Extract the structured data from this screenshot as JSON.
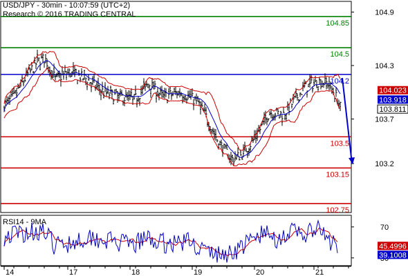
{
  "header": {
    "title": "USD/JPY - 30min - 10:07:59 (UTC+2)",
    "subtitle": "Research © 2016 TRADING CENTRAL"
  },
  "chart_data": [
    {
      "type": "candlestick",
      "instrument": "USD/JPY",
      "timeframe": "30min",
      "x_tick_labels": [
        "14",
        "17",
        "18",
        "19",
        "20",
        "21"
      ],
      "y_ticks": [
        104.9,
        104.3,
        103.7,
        103.2
      ],
      "y_tick_labels": [
        "104.9",
        "104.3",
        "103.7",
        "103.2"
      ],
      "ylim": [
        102.65,
        105.02
      ],
      "grid": false,
      "price_summary": {
        "range_high": 104.45,
        "range_low": 103.15,
        "last_close": 103.811
      },
      "horizontal_lines": [
        {
          "label": "104.85",
          "value": 104.85,
          "color": "#008000"
        },
        {
          "label": "104.5",
          "value": 104.5,
          "color": "#008000"
        },
        {
          "label": "104.2",
          "value": 104.2,
          "color": "#0000cc"
        },
        {
          "label": "103.5",
          "value": 103.5,
          "color": "#cc0000"
        },
        {
          "label": "103.15",
          "value": 103.15,
          "color": "#cc0000"
        },
        {
          "label": "102.75",
          "value": 102.75,
          "color": "#cc0000"
        }
      ],
      "price_tags": [
        {
          "label": "104.023",
          "value": 104.023,
          "color": "#cc0000"
        },
        {
          "label": "103.918",
          "value": 103.918,
          "color": "#0000cc"
        },
        {
          "label": "103.811",
          "value": 103.811,
          "color": "#000000"
        }
      ],
      "forecast_arrow": {
        "from": 104.16,
        "to": 103.2,
        "color": "#0000cc"
      },
      "overlays": [
        "Bollinger Bands (red)",
        "Moving average (blue)"
      ]
    },
    {
      "type": "line",
      "indicator": "RSI14 - 9MA",
      "label": "RSI14 - 9MA",
      "y_ticks": [
        70,
        30
      ],
      "y_tick_labels": [
        "70",
        "30"
      ],
      "ylim": [
        20,
        85
      ],
      "value_tags": [
        {
          "label": "45.4996",
          "value": 45.4996,
          "color": "#cc0000"
        },
        {
          "label": "39.1008",
          "value": 39.1008,
          "color": "#0000cc"
        }
      ],
      "series": [
        {
          "name": "RSI14",
          "color": "#0000cc"
        },
        {
          "name": "9MA",
          "color": "#cc0000"
        }
      ]
    }
  ],
  "colors": {
    "green": "#008000",
    "blue": "#0000cc",
    "red": "#cc0000",
    "candle": "#000000"
  }
}
